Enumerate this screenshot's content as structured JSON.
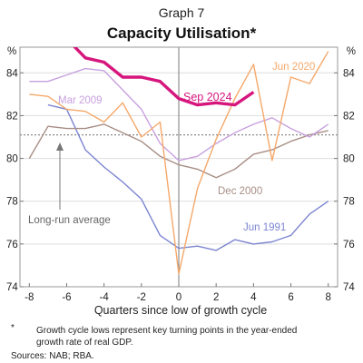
{
  "header": {
    "graph_number": "Graph 7",
    "title": "Capacity Utilisation*"
  },
  "footnote": {
    "marker": "*",
    "lines": [
      "Growth cycle lows represent key turning points in the year-ended",
      "growth rate of real GDP."
    ],
    "sources": "Sources: NAB; RBA."
  },
  "chart_data": {
    "type": "line",
    "xlabel": "Quarters since low of growth cycle",
    "ylabel_left": "%",
    "ylabel_right": "%",
    "xlim": [
      -8.5,
      8.5
    ],
    "ylim": [
      74,
      85.2
    ],
    "x_ticks": [
      -8,
      -6,
      -4,
      -2,
      0,
      2,
      4,
      6,
      8
    ],
    "y_ticks": [
      74,
      76,
      78,
      80,
      82,
      84
    ],
    "grid": true,
    "reference_lines": [
      {
        "label": "Long-run average",
        "y": 81.1,
        "style": "dotted",
        "color": "#8a8a8a"
      }
    ],
    "vertical_line_x": 0,
    "series": [
      {
        "name": "Jun 1991",
        "color": "#7b84d0",
        "x": [
          -7,
          -6,
          -5,
          -4,
          -3,
          -2,
          -1,
          0,
          1,
          2,
          3,
          4,
          5,
          6,
          7,
          8
        ],
        "y": [
          82.5,
          82.3,
          80.4,
          79.6,
          78.9,
          78.1,
          76.4,
          75.8,
          75.9,
          75.7,
          76.2,
          76.0,
          76.1,
          76.4,
          77.4,
          78.0
        ]
      },
      {
        "name": "Dec 2000",
        "color": "#a88e85",
        "x": [
          -8,
          -7,
          -6,
          -5,
          -4,
          -3,
          -2,
          -1,
          0,
          1,
          2,
          3,
          4,
          5,
          6,
          7,
          8
        ],
        "y": [
          80.0,
          81.5,
          81.4,
          81.4,
          81.6,
          81.2,
          80.8,
          80.1,
          79.7,
          79.5,
          79.1,
          79.5,
          80.2,
          80.4,
          80.8,
          81.1,
          81.3
        ]
      },
      {
        "name": "Mar 2009",
        "color": "#c8a0df",
        "x": [
          -8,
          -7,
          -6,
          -5,
          -4,
          -3,
          -2,
          -1,
          0,
          1,
          2,
          3,
          4,
          5,
          6,
          7,
          8
        ],
        "y": [
          83.6,
          83.6,
          83.9,
          84.2,
          84.1,
          83.2,
          82.3,
          80.7,
          79.9,
          80.1,
          80.7,
          81.2,
          81.6,
          81.9,
          81.4,
          81.0,
          81.6
        ]
      },
      {
        "name": "Jun 2020",
        "color": "#f5a86a",
        "x": [
          -8,
          -7,
          -6,
          -5,
          -4,
          -3,
          -2,
          -1,
          0,
          1,
          2,
          3,
          4,
          5,
          6,
          7,
          8
        ],
        "y": [
          83.0,
          82.9,
          82.3,
          82.2,
          81.7,
          82.6,
          81.0,
          81.7,
          74.6,
          78.6,
          80.9,
          82.8,
          84.4,
          79.9,
          83.8,
          83.5,
          85.0
        ]
      },
      {
        "name": "Sep 2024",
        "color": "#d6167d",
        "x": [
          -8,
          -7,
          -6,
          -5,
          -4,
          -3,
          -2,
          -1,
          0,
          1,
          2,
          3,
          4
        ],
        "y": [
          86.0,
          85.3,
          85.6,
          84.7,
          84.5,
          83.8,
          83.8,
          83.6,
          82.8,
          82.5,
          82.6,
          82.5,
          83.1
        ]
      }
    ]
  }
}
